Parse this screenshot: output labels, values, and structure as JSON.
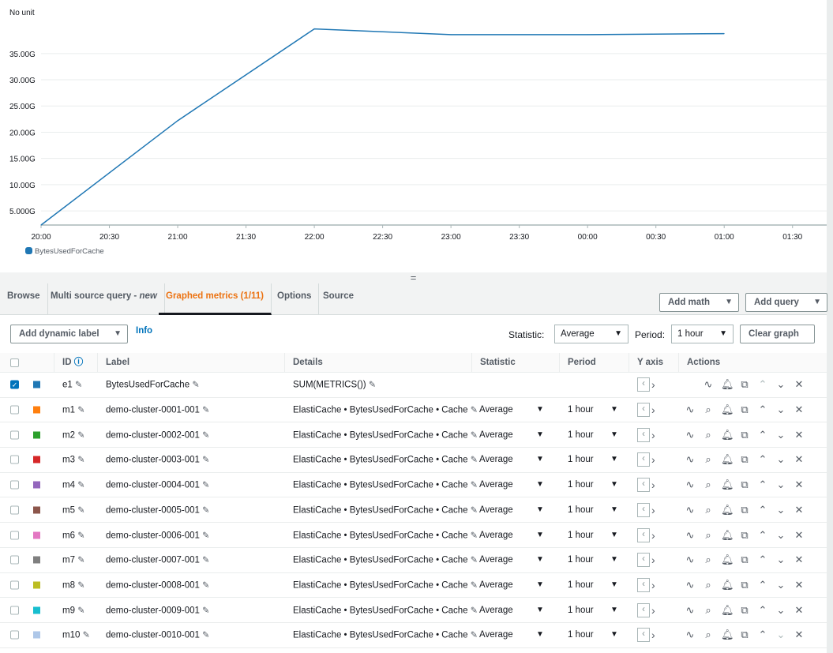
{
  "chart_data": {
    "type": "line",
    "unit_label": "No unit",
    "x": [
      "20:00",
      "21:00",
      "22:00",
      "23:00",
      "00:00",
      "01:00"
    ],
    "series": [
      {
        "name": "BytesUsedForCache",
        "color": "#1f77b4",
        "values": [
          2.3,
          22.2,
          39.7,
          38.6,
          38.6,
          38.8
        ]
      }
    ],
    "x_ticks": [
      "20:00",
      "20:30",
      "21:00",
      "21:30",
      "22:00",
      "22:30",
      "23:00",
      "23:30",
      "00:00",
      "00:30",
      "01:00",
      "01:30"
    ],
    "y_ticks": [
      {
        "v": 5,
        "label": "5.000G"
      },
      {
        "v": 10,
        "label": "10.00G"
      },
      {
        "v": 15,
        "label": "15.00G"
      },
      {
        "v": 20,
        "label": "20.00G"
      },
      {
        "v": 25,
        "label": "25.00G"
      },
      {
        "v": 30,
        "label": "30.00G"
      },
      {
        "v": 35,
        "label": "35.00G"
      }
    ],
    "ylim": [
      2.3,
      42.2
    ],
    "x_range_hours": [
      0,
      5.75
    ],
    "legend": "bottom-left",
    "grid": true
  },
  "tabs": [
    {
      "label": "Browse"
    },
    {
      "label": "Multi source query - ",
      "em": "new"
    },
    {
      "label": "Graphed metrics (1/11)"
    },
    {
      "label": "Options"
    },
    {
      "label": "Source"
    }
  ],
  "toolbar": {
    "add_math": "Add math",
    "add_query": "Add query",
    "add_dynamic_label": "Add dynamic label",
    "info": "Info",
    "statistic_label": "Statistic:",
    "statistic": "Average",
    "period_label": "Period:",
    "period": "1 hour",
    "clear_graph": "Clear graph"
  },
  "columns": [
    "ID",
    "Label",
    "Details",
    "Statistic",
    "Period",
    "Y axis",
    "Actions"
  ],
  "rows": [
    {
      "checked": true,
      "color": "#1f77b4",
      "id": "e1",
      "label": "BytesUsedForCache",
      "details": "SUM(METRICS())",
      "statistic": "",
      "period": ""
    },
    {
      "checked": false,
      "color": "#ff7f0e",
      "id": "m1",
      "label": "demo-cluster-0001-001",
      "details": "ElastiCache • BytesUsedForCache • Cache",
      "statistic": "Average",
      "period": "1 hour"
    },
    {
      "checked": false,
      "color": "#2ca02c",
      "id": "m2",
      "label": "demo-cluster-0002-001",
      "details": "ElastiCache • BytesUsedForCache • Cache",
      "statistic": "Average",
      "period": "1 hour"
    },
    {
      "checked": false,
      "color": "#d62728",
      "id": "m3",
      "label": "demo-cluster-0003-001",
      "details": "ElastiCache • BytesUsedForCache • Cache",
      "statistic": "Average",
      "period": "1 hour"
    },
    {
      "checked": false,
      "color": "#9467bd",
      "id": "m4",
      "label": "demo-cluster-0004-001",
      "details": "ElastiCache • BytesUsedForCache • Cache",
      "statistic": "Average",
      "period": "1 hour"
    },
    {
      "checked": false,
      "color": "#8c564b",
      "id": "m5",
      "label": "demo-cluster-0005-001",
      "details": "ElastiCache • BytesUsedForCache • Cache",
      "statistic": "Average",
      "period": "1 hour"
    },
    {
      "checked": false,
      "color": "#e377c2",
      "id": "m6",
      "label": "demo-cluster-0006-001",
      "details": "ElastiCache • BytesUsedForCache • Cache",
      "statistic": "Average",
      "period": "1 hour"
    },
    {
      "checked": false,
      "color": "#7f7f7f",
      "id": "m7",
      "label": "demo-cluster-0007-001",
      "details": "ElastiCache • BytesUsedForCache • Cache",
      "statistic": "Average",
      "period": "1 hour"
    },
    {
      "checked": false,
      "color": "#bcbd22",
      "id": "m8",
      "label": "demo-cluster-0008-001",
      "details": "ElastiCache • BytesUsedForCache • Cache",
      "statistic": "Average",
      "period": "1 hour"
    },
    {
      "checked": false,
      "color": "#17becf",
      "id": "m9",
      "label": "demo-cluster-0009-001",
      "details": "ElastiCache • BytesUsedForCache • Cache",
      "statistic": "Average",
      "period": "1 hour"
    },
    {
      "checked": false,
      "color": "#aec7e8",
      "id": "m10",
      "label": "demo-cluster-0010-001",
      "details": "ElastiCache • BytesUsedForCache • Cache",
      "statistic": "Average",
      "period": "1 hour"
    }
  ]
}
